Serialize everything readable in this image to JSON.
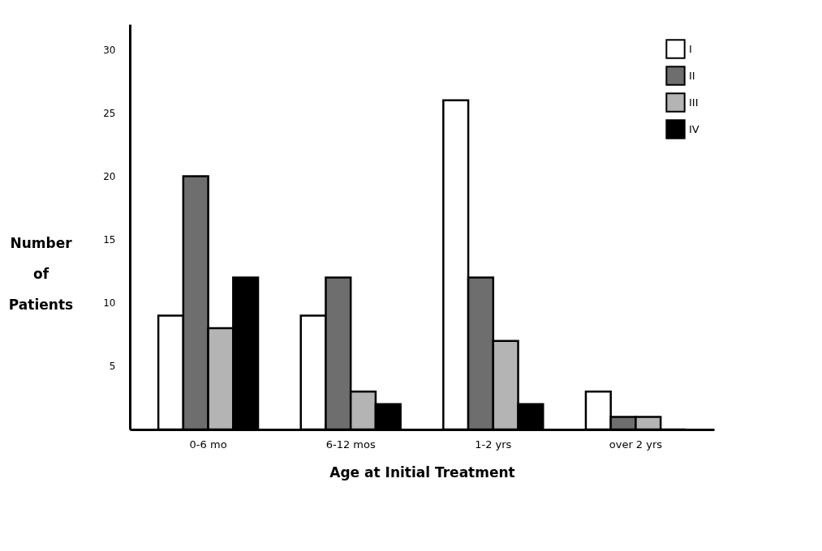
{
  "chart_data": {
    "type": "bar",
    "xlabel": "Age at Initial Treatment",
    "ylabel": "Number of Patients",
    "categories": [
      "0-6 mo",
      "6-12 mos",
      "1-2 yrs",
      "over 2 yrs"
    ],
    "series": [
      {
        "name": "I",
        "color": "#ffffff",
        "values": [
          9,
          9,
          26,
          3
        ]
      },
      {
        "name": "II",
        "color": "#6e6e6e",
        "values": [
          20,
          12,
          12,
          1
        ]
      },
      {
        "name": "III",
        "color": "#b4b4b4",
        "values": [
          8,
          3,
          7,
          1
        ]
      },
      {
        "name": "IV",
        "color": "#000000",
        "values": [
          12,
          2,
          2,
          0
        ]
      }
    ],
    "ylim": [
      0,
      32
    ],
    "yticks": [
      5,
      10,
      15,
      20,
      25,
      30
    ],
    "grid": false,
    "legend": "top right"
  }
}
